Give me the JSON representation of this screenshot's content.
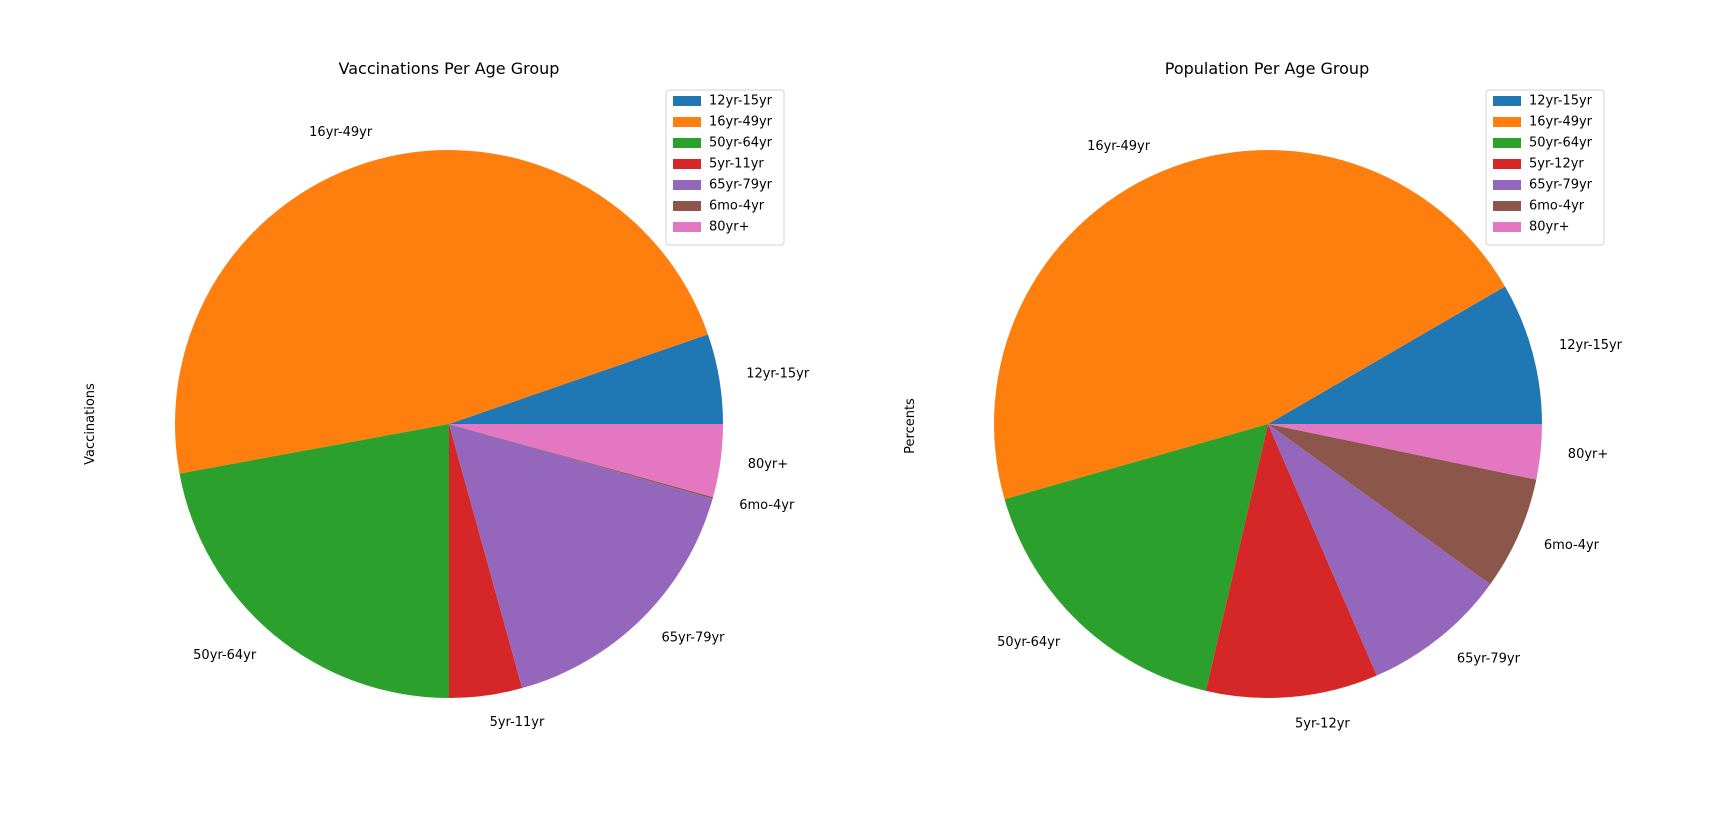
{
  "chart_data": [
    {
      "type": "pie",
      "title": "Vaccinations Per Age Group",
      "ylabel": "Vaccinations",
      "legend_position": "top-right",
      "categories": [
        "12yr-15yr",
        "16yr-49yr",
        "50yr-64yr",
        "5yr-11yr",
        "65yr-79yr",
        "6mo-4yr",
        "80yr+"
      ],
      "values": [
        5.3,
        47.6,
        22.1,
        4.3,
        16.3,
        0.1,
        4.3
      ],
      "colors": [
        "#1f77b4",
        "#ff7f0e",
        "#2ca02c",
        "#d62728",
        "#9467bd",
        "#8c564b",
        "#e377c2"
      ]
    },
    {
      "type": "pie",
      "title": "Population Per Age Group",
      "ylabel": "Percents",
      "legend_position": "top-right",
      "categories": [
        "12yr-15yr",
        "16yr-49yr",
        "50yr-64yr",
        "5yr-12yr",
        "65yr-79yr",
        "6mo-4yr",
        "80yr+"
      ],
      "values": [
        8.5,
        46.8,
        17.2,
        10.3,
        8.7,
        6.8,
        3.3
      ],
      "colors": [
        "#1f77b4",
        "#ff7f0e",
        "#2ca02c",
        "#d62728",
        "#9467bd",
        "#8c564b",
        "#e377c2"
      ]
    }
  ]
}
